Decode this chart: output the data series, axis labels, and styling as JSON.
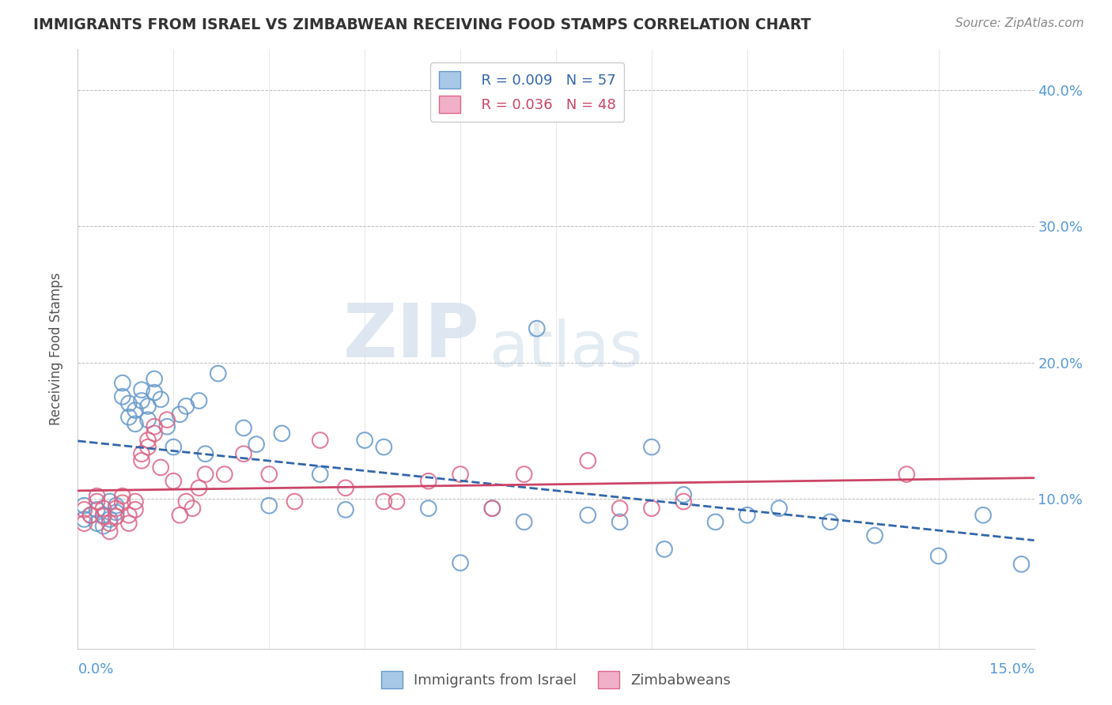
{
  "title": "IMMIGRANTS FROM ISRAEL VS ZIMBABWEAN RECEIVING FOOD STAMPS CORRELATION CHART",
  "source": "Source: ZipAtlas.com",
  "ylabel": "Receiving Food Stamps",
  "xlim": [
    0.0,
    0.15
  ],
  "ylim": [
    -0.01,
    0.43
  ],
  "legend_r1": "R = 0.009",
  "legend_n1": "N = 57",
  "legend_r2": "R = 0.036",
  "legend_n2": "N = 48",
  "color_israel": "#a8c8e8",
  "color_zimbabwe": "#f0b0c8",
  "edge_color_israel": "#6699cc",
  "edge_color_zimbabwe": "#dd6688",
  "trend_color_israel": "#3366aa",
  "trend_color_zimbabwe": "#cc4466",
  "watermark_zip": "ZIP",
  "watermark_atlas": "atlas",
  "israel_x": [
    0.001,
    0.001,
    0.002,
    0.003,
    0.003,
    0.004,
    0.004,
    0.005,
    0.005,
    0.006,
    0.006,
    0.007,
    0.007,
    0.008,
    0.008,
    0.009,
    0.009,
    0.01,
    0.01,
    0.011,
    0.011,
    0.012,
    0.012,
    0.013,
    0.014,
    0.015,
    0.016,
    0.017,
    0.019,
    0.02,
    0.022,
    0.026,
    0.028,
    0.03,
    0.032,
    0.038,
    0.042,
    0.045,
    0.048,
    0.055,
    0.06,
    0.065,
    0.07,
    0.072,
    0.08,
    0.085,
    0.09,
    0.092,
    0.095,
    0.1,
    0.105,
    0.11,
    0.118,
    0.125,
    0.135,
    0.142,
    0.148
  ],
  "israel_y": [
    0.095,
    0.085,
    0.088,
    0.082,
    0.092,
    0.08,
    0.088,
    0.098,
    0.085,
    0.09,
    0.095,
    0.185,
    0.175,
    0.16,
    0.17,
    0.155,
    0.165,
    0.18,
    0.172,
    0.158,
    0.168,
    0.188,
    0.178,
    0.173,
    0.153,
    0.138,
    0.162,
    0.168,
    0.172,
    0.133,
    0.192,
    0.152,
    0.14,
    0.095,
    0.148,
    0.118,
    0.092,
    0.143,
    0.138,
    0.093,
    0.053,
    0.093,
    0.083,
    0.225,
    0.088,
    0.083,
    0.138,
    0.063,
    0.103,
    0.083,
    0.088,
    0.093,
    0.083,
    0.073,
    0.058,
    0.088,
    0.052
  ],
  "zimbabwe_x": [
    0.001,
    0.001,
    0.002,
    0.003,
    0.003,
    0.004,
    0.004,
    0.005,
    0.005,
    0.006,
    0.006,
    0.007,
    0.007,
    0.008,
    0.008,
    0.009,
    0.009,
    0.01,
    0.01,
    0.011,
    0.011,
    0.012,
    0.012,
    0.013,
    0.014,
    0.015,
    0.016,
    0.017,
    0.018,
    0.019,
    0.02,
    0.023,
    0.026,
    0.03,
    0.034,
    0.038,
    0.042,
    0.048,
    0.05,
    0.055,
    0.06,
    0.065,
    0.07,
    0.08,
    0.085,
    0.09,
    0.095,
    0.13
  ],
  "zimbabwe_y": [
    0.092,
    0.082,
    0.088,
    0.098,
    0.102,
    0.087,
    0.093,
    0.076,
    0.082,
    0.087,
    0.093,
    0.102,
    0.097,
    0.082,
    0.088,
    0.092,
    0.098,
    0.133,
    0.128,
    0.143,
    0.138,
    0.153,
    0.148,
    0.123,
    0.158,
    0.113,
    0.088,
    0.098,
    0.093,
    0.108,
    0.118,
    0.118,
    0.133,
    0.118,
    0.098,
    0.143,
    0.108,
    0.098,
    0.098,
    0.113,
    0.118,
    0.093,
    0.118,
    0.128,
    0.093,
    0.093,
    0.098,
    0.118
  ]
}
